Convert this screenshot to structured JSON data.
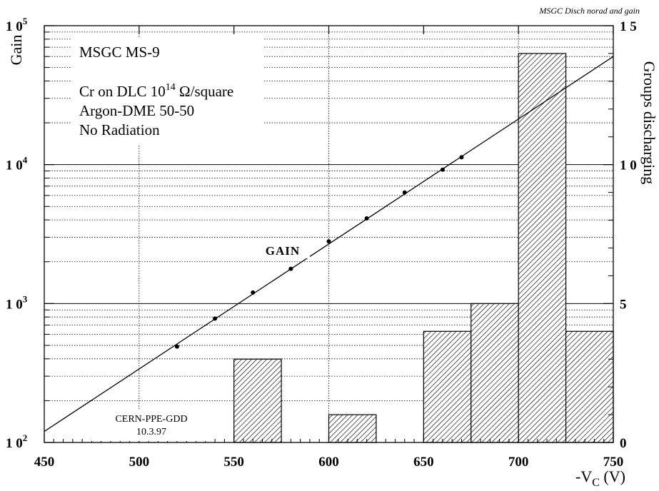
{
  "chart_data": {
    "type": "bar+line",
    "title_corner": "MSGC Disch norad and gain",
    "xlabel": "-V",
    "xlabel_sub": "C",
    "xlabel_unit": " (V)",
    "ylabel_left": "Gain",
    "ylabel_right": "Groups discharging",
    "xlim": [
      450,
      750
    ],
    "ylim_left": [
      100,
      100000
    ],
    "ylim_left_scale": "log",
    "ylim_right": [
      0,
      15
    ],
    "x_ticks": [
      450,
      500,
      550,
      600,
      650,
      700,
      750
    ],
    "x_tick_labels": [
      "450",
      "500",
      "550",
      "600",
      "650",
      "700",
      "750"
    ],
    "y_left_ticks": [
      {
        "base": "1 0",
        "exp": "2",
        "value": 100
      },
      {
        "base": "1 0",
        "exp": "3",
        "value": 1000
      },
      {
        "base": "1 0",
        "exp": "4",
        "value": 10000
      },
      {
        "base": "1 0",
        "exp": "5",
        "value": 100000
      }
    ],
    "y_right_ticks": [
      {
        "label": "0",
        "value": 0
      },
      {
        "label": "5",
        "value": 5
      },
      {
        "label": "1 0",
        "value": 10
      },
      {
        "label": "1 5",
        "value": 15
      }
    ],
    "histogram": {
      "name": "Groups discharging",
      "bins": [
        {
          "x0": 550,
          "x1": 575,
          "count": 3
        },
        {
          "x0": 600,
          "x1": 625,
          "count": 1
        },
        {
          "x0": 650,
          "x1": 675,
          "count": 4
        },
        {
          "x0": 675,
          "x1": 700,
          "count": 5
        },
        {
          "x0": 700,
          "x1": 725,
          "count": 14
        },
        {
          "x0": 725,
          "x1": 750,
          "count": 4
        }
      ]
    },
    "gain_points": {
      "x": [
        520,
        540,
        560,
        580,
        600,
        620,
        640,
        660,
        670
      ],
      "y": [
        490,
        780,
        1200,
        1780,
        2800,
        4100,
        6300,
        9200,
        11300
      ]
    },
    "gain_fit": {
      "x": [
        450,
        750
      ],
      "y": [
        120,
        60000
      ]
    },
    "gain_label": "GAIN",
    "info": {
      "line1": "MSGC MS-9",
      "line2_pre": "Cr on DLC 10",
      "line2_exp": "14",
      "line2_post": " Ω/square",
      "line3": "Argon-DME  50-50",
      "line4": "No Radiation"
    },
    "credit": {
      "line1": "CERN-PPE-GDD",
      "line2": "10.3.97"
    },
    "grid": "horizontal log minor dotted, major solid; vertical dotted at 500,600,700",
    "colors": {
      "axis": "#000000",
      "background": "#ffffff"
    }
  }
}
